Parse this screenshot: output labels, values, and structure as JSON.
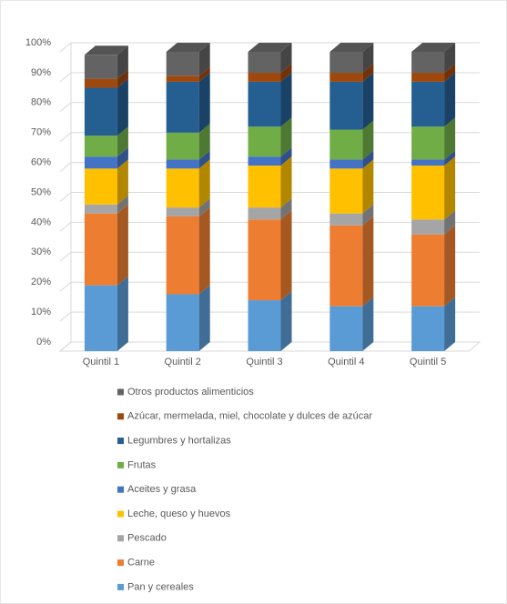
{
  "chart_data": {
    "type": "bar3d_stacked",
    "categories": [
      "Quintil 1",
      "Quintil 2",
      "Quintil 3",
      "Quintil 4",
      "Quintil 5"
    ],
    "series": [
      {
        "name": "Pan y cereales",
        "color": "#5b9bd5",
        "values": [
          22,
          19,
          17,
          15,
          15
        ]
      },
      {
        "name": "Carne",
        "color": "#ed7d31",
        "values": [
          24,
          26,
          27,
          27,
          24
        ]
      },
      {
        "name": "Pescado",
        "color": "#a5a5a5",
        "values": [
          3,
          3,
          4,
          4,
          5
        ]
      },
      {
        "name": "Leche, queso y huevos",
        "color": "#ffc000",
        "values": [
          12,
          13,
          14,
          15,
          18
        ]
      },
      {
        "name": "Aceites y grasa",
        "color": "#4472c4",
        "values": [
          4,
          3,
          3,
          3,
          2
        ]
      },
      {
        "name": "Frutas",
        "color": "#70ad47",
        "values": [
          7,
          9,
          10,
          10,
          11
        ]
      },
      {
        "name": "Legumbres y hortalizas",
        "color": "#255e91",
        "values": [
          16,
          17,
          15,
          16,
          15
        ]
      },
      {
        "name": "Azúcar, mermelada, miel, chocolate y dulces de azúcar",
        "color": "#9e480e",
        "values": [
          3,
          2,
          3,
          3,
          3
        ]
      },
      {
        "name": "Otros productos alimenticios",
        "color": "#636363",
        "values": [
          8,
          8,
          7,
          7,
          7
        ]
      }
    ],
    "ylim": [
      0,
      100
    ],
    "yticks": [
      {
        "value": 0,
        "label": "0%"
      },
      {
        "value": 10,
        "label": "10%"
      },
      {
        "value": 20,
        "label": "20%"
      },
      {
        "value": 30,
        "label": "30%"
      },
      {
        "value": 40,
        "label": "40%"
      },
      {
        "value": 50,
        "label": "50%"
      },
      {
        "value": 60,
        "label": "60%"
      },
      {
        "value": 70,
        "label": "70%"
      },
      {
        "value": 80,
        "label": "80%"
      },
      {
        "value": 90,
        "label": "90%"
      },
      {
        "value": 100,
        "label": "100%"
      }
    ],
    "grid": true
  }
}
